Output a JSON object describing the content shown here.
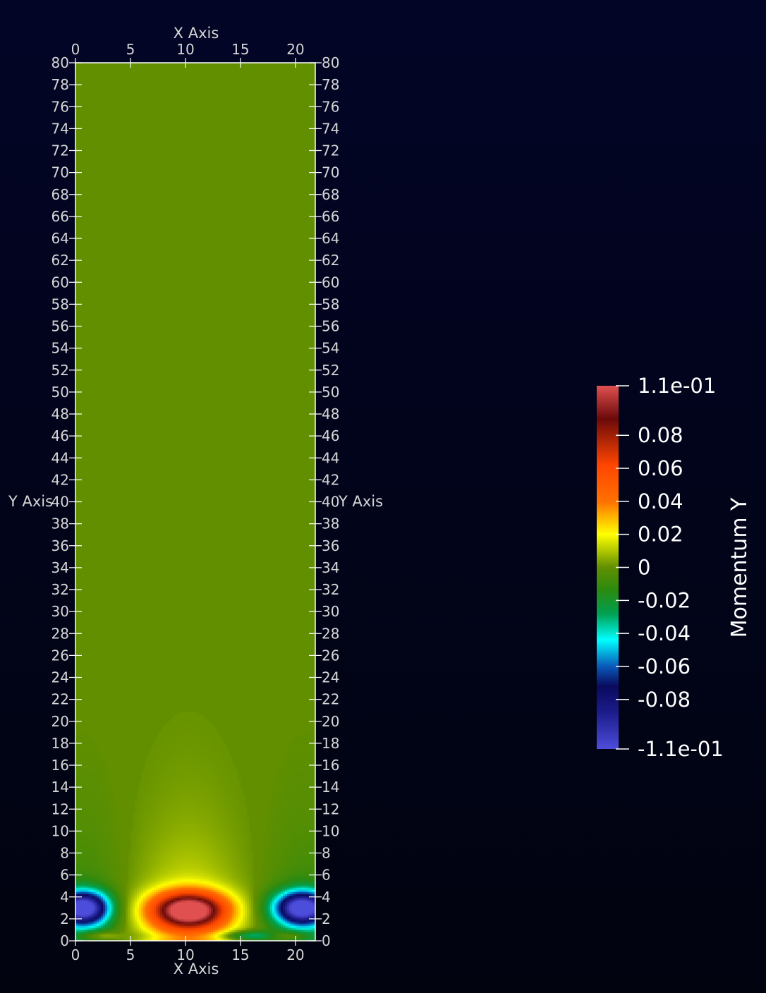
{
  "chart_data": {
    "type": "heatmap",
    "scalar_name": "Momentum Y",
    "x_axis": {
      "title": "X Axis",
      "range": [
        0,
        21.8
      ],
      "ticks": [
        0,
        5,
        10,
        15,
        20
      ],
      "tick_labels": [
        "0",
        "5",
        "10",
        "15",
        "20"
      ]
    },
    "y_axis": {
      "title": "Y Axis",
      "range": [
        0,
        80
      ],
      "ticks": [
        0,
        2,
        4,
        6,
        8,
        10,
        12,
        14,
        16,
        18,
        20,
        22,
        24,
        26,
        28,
        30,
        32,
        34,
        36,
        38,
        40,
        42,
        44,
        46,
        48,
        50,
        52,
        54,
        56,
        58,
        60,
        62,
        64,
        66,
        68,
        70,
        72,
        74,
        76,
        78,
        80
      ],
      "tick_labels": [
        "0",
        "2",
        "4",
        "6",
        "8",
        "10",
        "12",
        "14",
        "16",
        "18",
        "20",
        "22",
        "24",
        "26",
        "28",
        "30",
        "32",
        "34",
        "36",
        "38",
        "40",
        "42",
        "44",
        "46",
        "48",
        "50",
        "52",
        "54",
        "56",
        "58",
        "60",
        "62",
        "64",
        "66",
        "68",
        "70",
        "72",
        "74",
        "76",
        "78",
        "80"
      ]
    },
    "colorbar": {
      "title": "Momentum Y",
      "range": [
        -0.11,
        0.11
      ],
      "tick_values": [
        0.11,
        0.08,
        0.06,
        0.04,
        0.02,
        0,
        -0.02,
        -0.04,
        -0.06,
        -0.08,
        -0.11
      ],
      "tick_labels": [
        "1.1e-01",
        "0.08",
        "0.06",
        "0.04",
        "0.02",
        "0",
        "-0.02",
        "-0.04",
        "-0.06",
        "-0.08",
        "-1.1e-01"
      ],
      "colors": [
        {
          "v": -0.11,
          "c": "#4d4ddb"
        },
        {
          "v": -0.088,
          "c": "#1c1c8c"
        },
        {
          "v": -0.072,
          "c": "#0a0a5e"
        },
        {
          "v": -0.06,
          "c": "#0a58b8"
        },
        {
          "v": -0.044,
          "c": "#00ffff"
        },
        {
          "v": -0.028,
          "c": "#00a050"
        },
        {
          "v": -0.014,
          "c": "#2a8a10"
        },
        {
          "v": 0.0,
          "c": "#618f00"
        },
        {
          "v": 0.02,
          "c": "#ffff00"
        },
        {
          "v": 0.04,
          "c": "#ff7000"
        },
        {
          "v": 0.062,
          "c": "#ff4500"
        },
        {
          "v": 0.09,
          "c": "#6b0a0a"
        },
        {
          "v": 0.11,
          "c": "#e05050"
        }
      ]
    },
    "features": [
      {
        "kind": "minimum",
        "x": 0.8,
        "y": 3.0,
        "value": -0.11
      },
      {
        "kind": "maximum",
        "x": 10.5,
        "y": 2.8,
        "value": 0.11
      },
      {
        "kind": "minimum",
        "x": 20.5,
        "y": 3.0,
        "value": -0.11
      }
    ],
    "background_value": 0.0
  }
}
